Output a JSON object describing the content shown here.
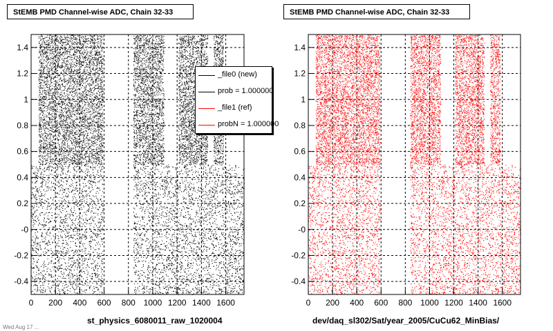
{
  "chart_data": [
    {
      "type": "scatter",
      "title": "StEMB PMD Channel-wise ADC, Chain 32-33",
      "xlabel": "st_physics_6080011_raw_1020004",
      "ylabel": "",
      "xlim": [
        0,
        1750
      ],
      "ylim": [
        -0.5,
        1.5
      ],
      "x_ticks": [
        "0",
        "200",
        "400",
        "600",
        "800",
        "1000",
        "1200",
        "1400",
        "1600"
      ],
      "y_ticks": [
        "-0.4",
        "-0.2",
        "-0",
        "0.2",
        "0.4",
        "0.6",
        "0.8",
        "1",
        "1.2",
        "1.4"
      ],
      "grid": true,
      "color": "#000000",
      "legend_position": "top-right",
      "upper_band_x_ranges": [
        [
          60,
          590
        ],
        [
          840,
          1090
        ],
        [
          1210,
          1450
        ],
        [
          1500,
          1580
        ]
      ],
      "lower_band_x_ranges": [
        [
          0,
          1750
        ]
      ],
      "lower_band_gaps": [
        [
          590,
          840
        ]
      ]
    },
    {
      "type": "scatter",
      "title": "StEMB PMD Channel-wise ADC, Chain 32-33",
      "xlabel": "dev/daq_sl302/Sat/year_2005/CuCu62_MinBias/",
      "ylabel": "",
      "xlim": [
        0,
        1750
      ],
      "ylim": [
        -0.5,
        1.5
      ],
      "x_ticks": [
        "0",
        "200",
        "400",
        "600",
        "800",
        "1000",
        "1200",
        "1400",
        "1600"
      ],
      "y_ticks": [
        "-0.4",
        "-0.2",
        "-0",
        "0.2",
        "0.4",
        "0.6",
        "0.8",
        "1",
        "1.2",
        "1.4"
      ],
      "grid": true,
      "color": "#ff0000",
      "upper_band_x_ranges": [
        [
          60,
          590
        ],
        [
          840,
          1090
        ],
        [
          1210,
          1450
        ],
        [
          1500,
          1580
        ]
      ],
      "lower_band_x_ranges": [
        [
          0,
          1750
        ]
      ],
      "lower_band_gaps": [
        [
          590,
          840
        ]
      ]
    }
  ],
  "legend": {
    "entries": [
      {
        "label": "_file0 (new)",
        "color": "#000000"
      },
      {
        "label": "prob = 1.000000",
        "color": "#000000"
      },
      {
        "label": "_file1 (ref)",
        "color": "#ff0000"
      },
      {
        "label": "probN = 1.000000",
        "color": "#ff0000"
      }
    ]
  },
  "footer": "Wed Aug 17 ..."
}
